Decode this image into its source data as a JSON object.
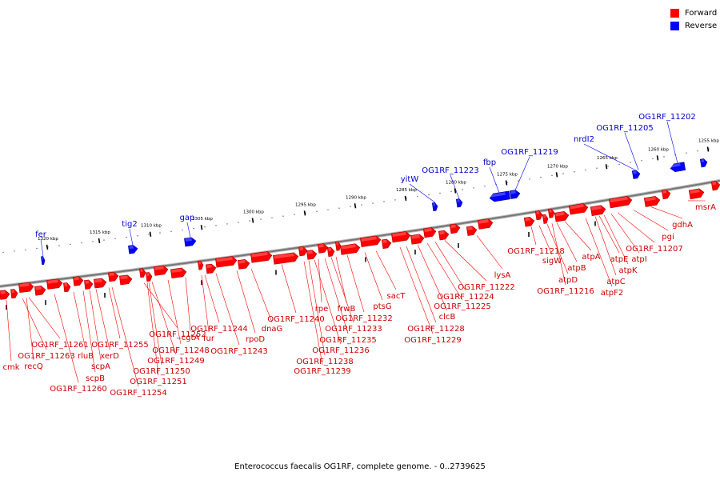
{
  "legend": {
    "forward_label": "Forward",
    "reverse_label": "Reverse",
    "forward_color": "#ff0000",
    "reverse_color": "#0000ff"
  },
  "caption": "Enterococcus faecalis OG1RF, complete genome. - 0..2739625",
  "scale_ticks": [
    "1255 kbp",
    "1260 kbp",
    "1265 kbp",
    "1270 kbp",
    "1275 kbp",
    "1280 kbp",
    "1285 kbp",
    "1290 kbp",
    "1295 kbp",
    "1300 kbp",
    "1305 kbp",
    "1310 kbp",
    "1315 kbp",
    "1320 kbp"
  ],
  "forward_genes": [
    "cmk",
    "OG1RF_11263",
    "recQ",
    "OG1RF_11261",
    "OG1RF_11260",
    "rluB",
    "scpB",
    "scpA",
    "xerD",
    "OG1RF_11255",
    "OG1RF_11254",
    "OG1RF_11252",
    "OG1RF_11251",
    "OG1RF_11250",
    "OG1RF_11249",
    "OG1RF_11248",
    "cgtA",
    "fur",
    "OG1RF_11244",
    "OG1RF_11243",
    "rpoD",
    "dnaG",
    "OG1RF_11240",
    "OG1RF_11239",
    "OG1RF_11238",
    "OG1RF_11236",
    "rpe",
    "OG1RF_11235",
    "OG1RF_11233",
    "frwB",
    "OG1RF_11232",
    "ptsG",
    "sacT",
    "OG1RF_11229",
    "OG1RF_11228",
    "clcB",
    "OG1RF_11225",
    "OG1RF_11224",
    "OG1RF_11222",
    "lysA",
    "OG1RF_11218",
    "sigW",
    "atpD",
    "OG1RF_11216",
    "atpB",
    "atpA",
    "atpF2",
    "atpC",
    "atpE",
    "atpK",
    "atpI",
    "OG1RF_11207",
    "pgi",
    "gdhA",
    "msrA"
  ],
  "reverse_genes": [
    "fer",
    "tig2",
    "gap",
    "yitW",
    "OG1RF_11223",
    "fbp",
    "OG1RF_11219",
    "nrdI2",
    "OG1RF_11205",
    "OG1RF_11202"
  ]
}
